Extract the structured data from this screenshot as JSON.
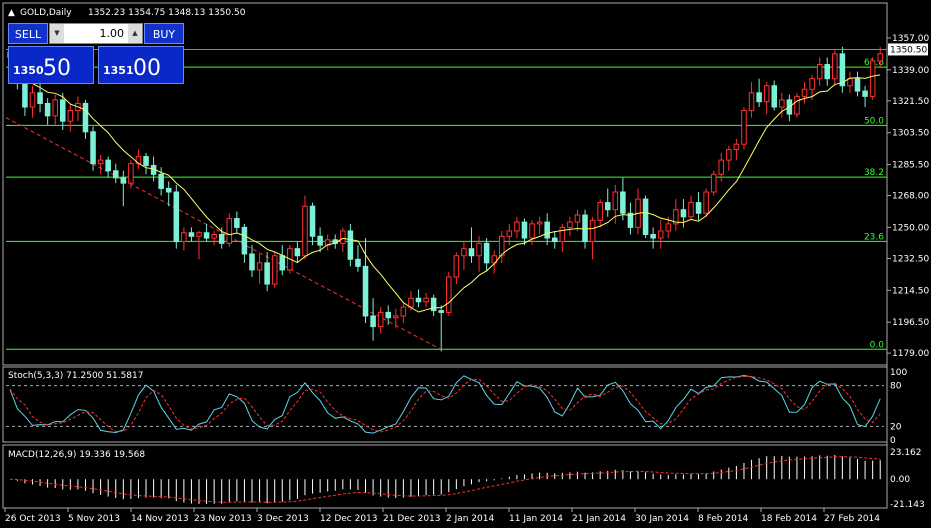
{
  "header": {
    "symbol": "GOLD,Daily",
    "ohlc": "1352.23 1354.75 1348.13 1350.50"
  },
  "trade_panel": {
    "sell_label": "SELL",
    "buy_label": "BUY",
    "lot": "1.00",
    "sell_small": "1350",
    "sell_big": "50",
    "buy_small": "1351",
    "buy_big": "00"
  },
  "chart_data": [
    {
      "type": "candlestick",
      "ylim": [
        1174,
        1366
      ],
      "y_ticks": [
        "1357.00",
        "1339.00",
        "1321.50",
        "1303.50",
        "1285.50",
        "1268.00",
        "1250.00",
        "1232.50",
        "1214.50",
        "1196.50",
        "1179.00"
      ],
      "current_price": "1350.50",
      "fib_levels": [
        {
          "label": "61.8",
          "value": 1340.5
        },
        {
          "label": "50.0",
          "value": 1307.6
        },
        {
          "label": "38.2",
          "value": 1278.4
        },
        {
          "label": "23.6",
          "value": 1242.1
        },
        {
          "label": "0.0",
          "value": 1181.2
        }
      ],
      "x_labels": [
        "26 Oct 2013",
        "5 Nov 2013",
        "14 Nov 2013",
        "23 Nov 2013",
        "3 Dec 2013",
        "12 Dec 2013",
        "21 Dec 2013",
        "2 Jan 2014",
        "11 Jan 2014",
        "21 Jan 2014",
        "30 Jan 2014",
        "8 Feb 2014",
        "18 Feb 2014",
        "27 Feb 2014"
      ],
      "candles": [
        [
          1346,
          1352,
          1340,
          1349
        ],
        [
          1349,
          1351,
          1328,
          1332
        ],
        [
          1332,
          1336,
          1313,
          1318
        ],
        [
          1318,
          1330,
          1312,
          1326
        ],
        [
          1326,
          1332,
          1315,
          1320
        ],
        [
          1320,
          1323,
          1308,
          1313
        ],
        [
          1313,
          1325,
          1308,
          1322
        ],
        [
          1322,
          1326,
          1305,
          1310
        ],
        [
          1310,
          1320,
          1304,
          1316
        ],
        [
          1316,
          1324,
          1310,
          1320
        ],
        [
          1320,
          1322,
          1300,
          1304
        ],
        [
          1304,
          1307,
          1282,
          1286
        ],
        [
          1286,
          1291,
          1280,
          1288
        ],
        [
          1288,
          1290,
          1278,
          1282
        ],
        [
          1282,
          1286,
          1275,
          1278
        ],
        [
          1278,
          1282,
          1262,
          1275
        ],
        [
          1275,
          1288,
          1272,
          1286
        ],
        [
          1286,
          1294,
          1283,
          1290
        ],
        [
          1290,
          1292,
          1280,
          1285
        ],
        [
          1285,
          1290,
          1276,
          1280
        ],
        [
          1280,
          1284,
          1268,
          1272
        ],
        [
          1272,
          1276,
          1262,
          1270
        ],
        [
          1270,
          1274,
          1238,
          1242
        ],
        [
          1242,
          1250,
          1237,
          1247
        ],
        [
          1247,
          1250,
          1242,
          1245
        ],
        [
          1245,
          1248,
          1232,
          1247
        ],
        [
          1247,
          1252,
          1242,
          1244
        ],
        [
          1244,
          1248,
          1240,
          1246
        ],
        [
          1246,
          1250,
          1238,
          1241
        ],
        [
          1241,
          1258,
          1239,
          1255
        ],
        [
          1255,
          1259,
          1247,
          1250
        ],
        [
          1250,
          1252,
          1230,
          1235
        ],
        [
          1235,
          1240,
          1222,
          1226
        ],
        [
          1226,
          1235,
          1218,
          1230
        ],
        [
          1230,
          1236,
          1214,
          1218
        ],
        [
          1218,
          1236,
          1216,
          1234
        ],
        [
          1234,
          1240,
          1223,
          1226
        ],
        [
          1226,
          1240,
          1224,
          1238
        ],
        [
          1238,
          1242,
          1230,
          1234
        ],
        [
          1234,
          1268,
          1232,
          1262
        ],
        [
          1262,
          1264,
          1240,
          1245
        ],
        [
          1245,
          1250,
          1236,
          1240
        ],
        [
          1240,
          1246,
          1237,
          1243
        ],
        [
          1243,
          1246,
          1238,
          1241
        ],
        [
          1241,
          1250,
          1236,
          1248
        ],
        [
          1248,
          1252,
          1228,
          1232
        ],
        [
          1232,
          1240,
          1225,
          1228
        ],
        [
          1228,
          1244,
          1196,
          1200
        ],
        [
          1200,
          1210,
          1186,
          1194
        ],
        [
          1194,
          1205,
          1190,
          1202
        ],
        [
          1202,
          1206,
          1195,
          1199
        ],
        [
          1199,
          1204,
          1193,
          1200
        ],
        [
          1200,
          1207,
          1196,
          1205
        ],
        [
          1205,
          1214,
          1203,
          1210
        ],
        [
          1210,
          1215,
          1205,
          1208
        ],
        [
          1208,
          1213,
          1205,
          1210
        ],
        [
          1210,
          1212,
          1200,
          1203
        ],
        [
          1203,
          1206,
          1180,
          1202
        ],
        [
          1202,
          1225,
          1200,
          1222
        ],
        [
          1222,
          1236,
          1218,
          1234
        ],
        [
          1234,
          1242,
          1226,
          1238
        ],
        [
          1238,
          1250,
          1230,
          1234
        ],
        [
          1234,
          1245,
          1225,
          1241
        ],
        [
          1241,
          1244,
          1225,
          1230
        ],
        [
          1230,
          1237,
          1224,
          1234
        ],
        [
          1234,
          1248,
          1230,
          1245
        ],
        [
          1245,
          1252,
          1240,
          1248
        ],
        [
          1248,
          1256,
          1244,
          1253
        ],
        [
          1253,
          1255,
          1240,
          1244
        ],
        [
          1244,
          1254,
          1240,
          1252
        ],
        [
          1252,
          1256,
          1246,
          1253
        ],
        [
          1253,
          1258,
          1240,
          1244
        ],
        [
          1244,
          1248,
          1238,
          1242
        ],
        [
          1242,
          1252,
          1236,
          1250
        ],
        [
          1250,
          1256,
          1245,
          1253
        ],
        [
          1253,
          1260,
          1248,
          1257
        ],
        [
          1257,
          1260,
          1238,
          1242
        ],
        [
          1242,
          1256,
          1232,
          1254
        ],
        [
          1254,
          1266,
          1250,
          1264
        ],
        [
          1264,
          1272,
          1256,
          1260
        ],
        [
          1260,
          1274,
          1252,
          1270
        ],
        [
          1270,
          1278,
          1254,
          1258
        ],
        [
          1258,
          1264,
          1246,
          1250
        ],
        [
          1250,
          1272,
          1246,
          1266
        ],
        [
          1266,
          1268,
          1244,
          1246
        ],
        [
          1246,
          1250,
          1238,
          1244
        ],
        [
          1244,
          1254,
          1238,
          1248
        ],
        [
          1248,
          1256,
          1244,
          1252
        ],
        [
          1252,
          1266,
          1248,
          1260
        ],
        [
          1260,
          1266,
          1250,
          1256
        ],
        [
          1256,
          1268,
          1254,
          1264
        ],
        [
          1264,
          1270,
          1254,
          1258
        ],
        [
          1258,
          1272,
          1256,
          1270
        ],
        [
          1270,
          1282,
          1268,
          1280
        ],
        [
          1280,
          1292,
          1276,
          1288
        ],
        [
          1288,
          1296,
          1282,
          1294
        ],
        [
          1294,
          1300,
          1288,
          1297
        ],
        [
          1297,
          1318,
          1294,
          1316
        ],
        [
          1316,
          1332,
          1312,
          1326
        ],
        [
          1326,
          1334,
          1318,
          1321
        ],
        [
          1321,
          1332,
          1314,
          1330
        ],
        [
          1330,
          1333,
          1316,
          1318
        ],
        [
          1318,
          1326,
          1312,
          1322
        ],
        [
          1322,
          1325,
          1310,
          1314
        ],
        [
          1314,
          1326,
          1312,
          1324
        ],
        [
          1324,
          1332,
          1320,
          1328
        ],
        [
          1328,
          1336,
          1322,
          1334
        ],
        [
          1334,
          1346,
          1330,
          1342
        ],
        [
          1342,
          1346,
          1330,
          1334
        ],
        [
          1334,
          1350,
          1330,
          1348
        ],
        [
          1348,
          1352,
          1326,
          1330
        ],
        [
          1330,
          1338,
          1326,
          1334
        ],
        [
          1334,
          1338,
          1324,
          1327
        ],
        [
          1327,
          1330,
          1318,
          1324
        ],
        [
          1324,
          1346,
          1322,
          1344
        ],
        [
          1344,
          1352,
          1340,
          1348
        ]
      ]
    },
    {
      "type": "line",
      "title": "Stoch(5,3,3) 71.2500 51.5817",
      "ylim": [
        0,
        100
      ],
      "y_ticks": [
        "100",
        "80",
        "20",
        "0"
      ],
      "main_value": 71.25,
      "signal_value": 51.5817
    },
    {
      "type": "bar",
      "title": "MACD(12,26,9) 19.336 19.568",
      "y_ticks": [
        "23.162",
        "0.00",
        "-21.143"
      ],
      "main_value": 19.336,
      "signal_value": 19.568
    }
  ],
  "colors": {
    "bull": "#ff3030",
    "bear": "#7df0d8",
    "fib": "#33ff33",
    "ma": "#ffff66",
    "stoch_main": "#5fd3e6",
    "stoch_sig": "#ff3030",
    "trend": "#ff3030"
  }
}
